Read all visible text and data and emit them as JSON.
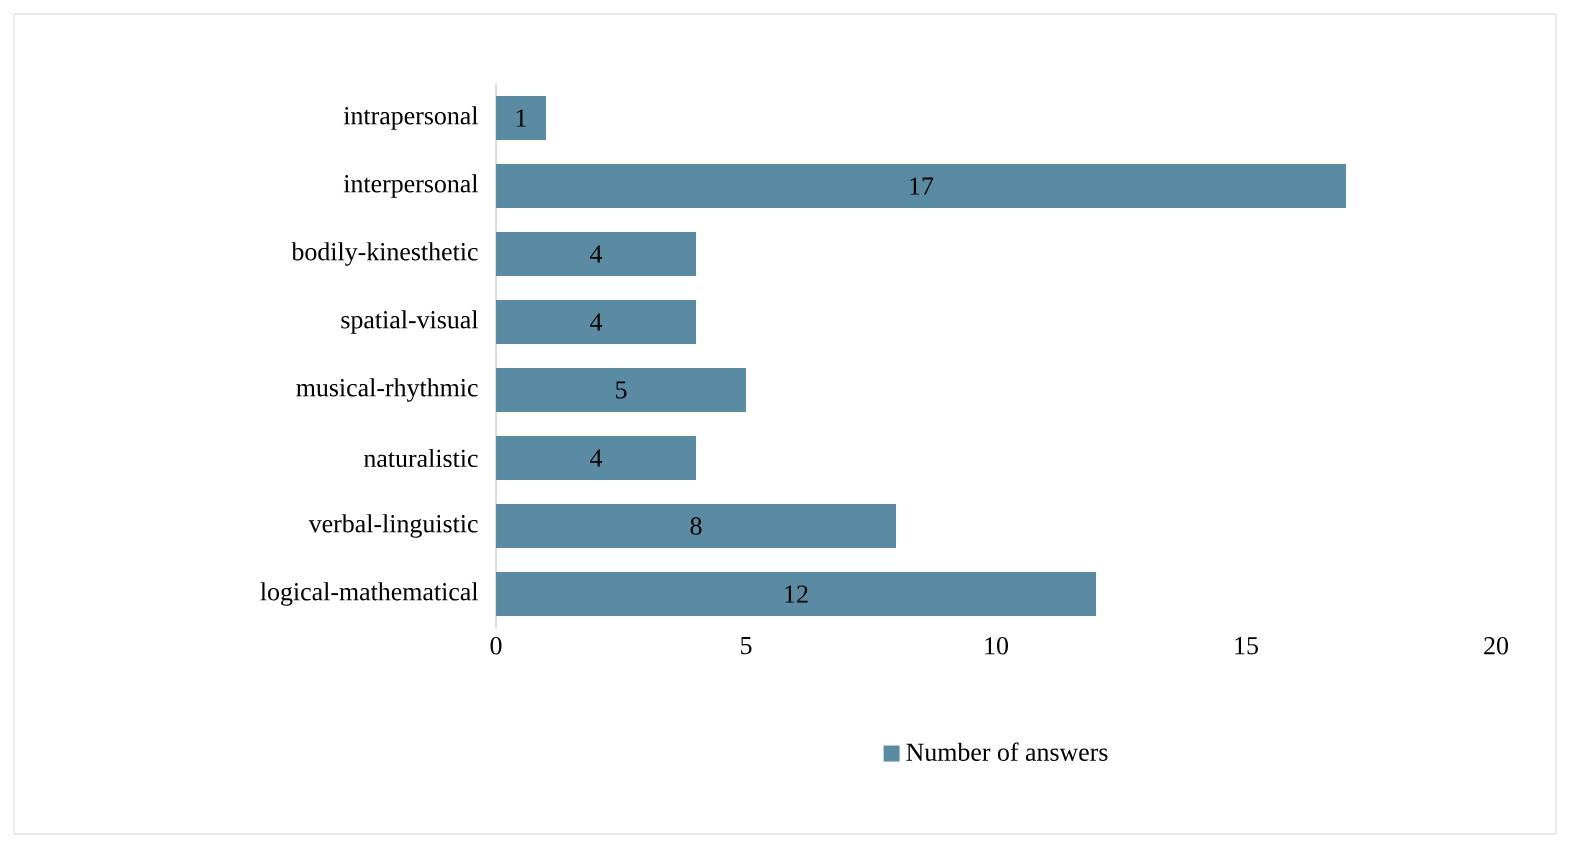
{
  "chart_data": {
    "type": "bar",
    "orientation": "horizontal",
    "categories": [
      "intrapersonal",
      "interpersonal",
      "bodily-kinesthetic",
      "spatial-visual",
      "musical-rhythmic",
      "naturalistic",
      "verbal-linguistic",
      "logical-mathematical"
    ],
    "series": [
      {
        "name": "Number of answers",
        "color": "#5b8ba3",
        "values": [
          1,
          17,
          4,
          4,
          5,
          4,
          8,
          12
        ]
      }
    ],
    "xlim": [
      0,
      20
    ],
    "xticks": [
      0,
      5,
      10,
      15,
      20
    ],
    "data_labels": true,
    "legend": "bottom",
    "grid": false
  }
}
